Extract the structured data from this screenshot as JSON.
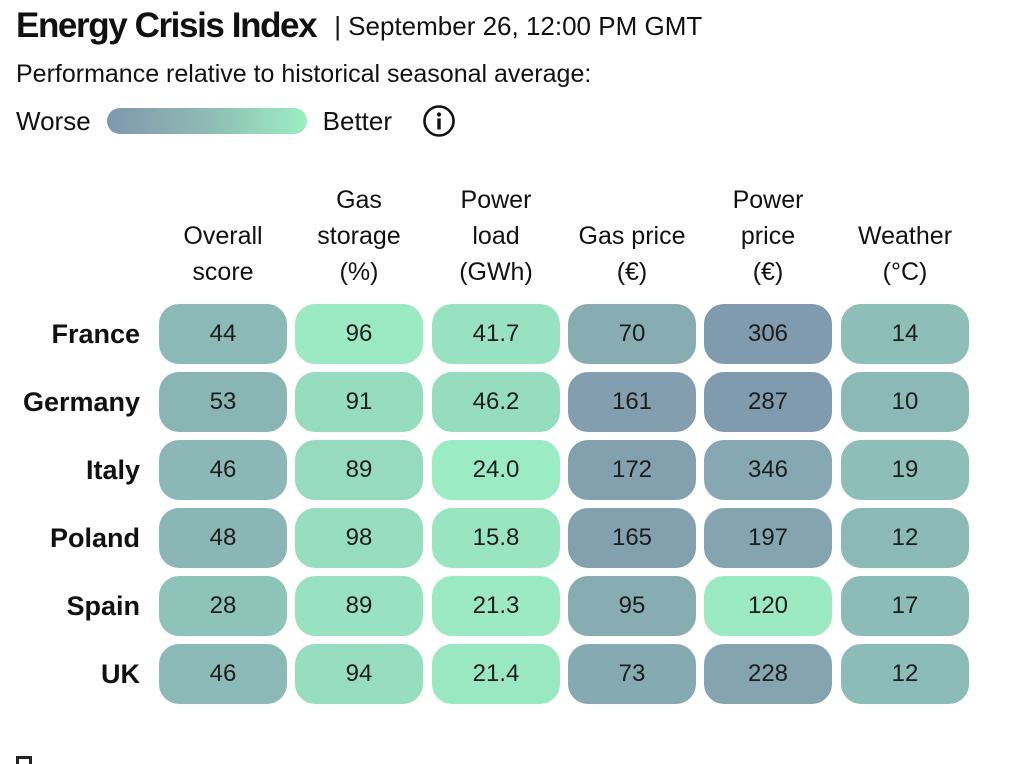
{
  "header": {
    "title": "Energy Crisis Index",
    "timestamp": "| September 26, 12:00 PM GMT",
    "subtitle": "Performance relative to historical seasonal average:"
  },
  "legend": {
    "worse_label": "Worse",
    "better_label": "Better",
    "colors": {
      "worse": "#8097ad",
      "better": "#9ceec4"
    }
  },
  "chart_data": {
    "type": "table",
    "columns": [
      "Overall\nscore",
      "Gas\nstorage\n(%)",
      "Power\nload\n(GWh)",
      "Gas price\n(€)",
      "Power\nprice\n(€)",
      "Weather\n(°C)"
    ],
    "rows": [
      {
        "country": "France",
        "values": [
          "44",
          "96",
          "41.7",
          "70",
          "306",
          "14"
        ],
        "performance": [
          0.4,
          0.95,
          0.85,
          0.25,
          0.05,
          0.45
        ]
      },
      {
        "country": "Germany",
        "values": [
          "53",
          "91",
          "46.2",
          "161",
          "287",
          "10"
        ],
        "performance": [
          0.35,
          0.8,
          0.8,
          0.08,
          0.05,
          0.4
        ]
      },
      {
        "country": "Italy",
        "values": [
          "46",
          "89",
          "24.0",
          "172",
          "346",
          "19"
        ],
        "performance": [
          0.38,
          0.78,
          0.98,
          0.1,
          0.2,
          0.45
        ]
      },
      {
        "country": "Poland",
        "values": [
          "48",
          "98",
          "15.8",
          "165",
          "197",
          "12"
        ],
        "performance": [
          0.37,
          0.82,
          0.88,
          0.1,
          0.15,
          0.4
        ]
      },
      {
        "country": "Spain",
        "values": [
          "28",
          "89",
          "21.3",
          "95",
          "120",
          "17"
        ],
        "performance": [
          0.5,
          0.85,
          0.95,
          0.25,
          0.95,
          0.42
        ]
      },
      {
        "country": "UK",
        "values": [
          "46",
          "94",
          "21.4",
          "73",
          "228",
          "12"
        ],
        "performance": [
          0.4,
          0.82,
          0.93,
          0.22,
          0.15,
          0.42
        ]
      }
    ]
  }
}
